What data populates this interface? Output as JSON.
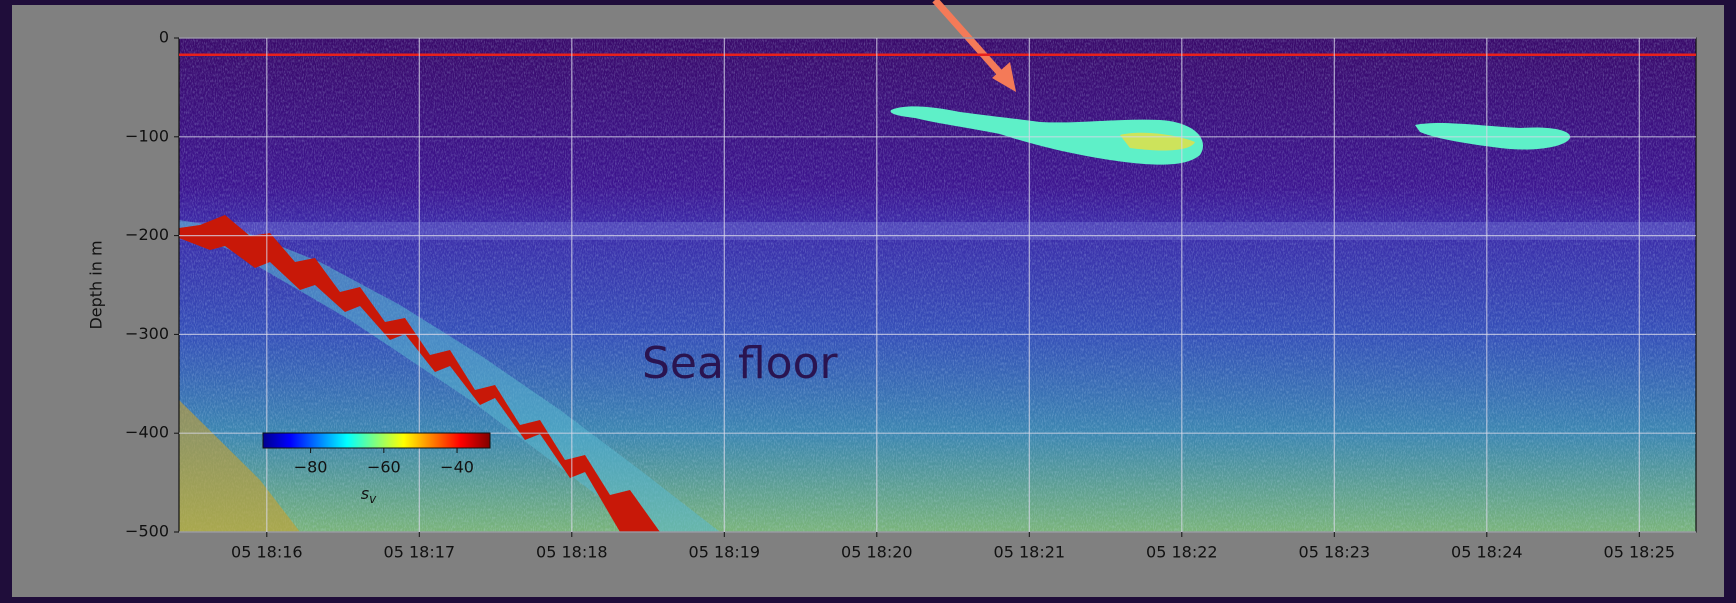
{
  "chart_data": {
    "type": "heatmap",
    "ylabel": "Depth in m",
    "ylim": [
      -500,
      0
    ],
    "yticks": [
      {
        "value": -500,
        "label": "−500"
      },
      {
        "value": -400,
        "label": "−400"
      },
      {
        "value": -300,
        "label": "−300"
      },
      {
        "value": -200,
        "label": "−200"
      },
      {
        "value": -100,
        "label": "−100"
      },
      0
    ],
    "xticks": [
      "05 18:16",
      "05 18:17",
      "05 18:18",
      "05 18:19",
      "05 18:20",
      "05 18:21",
      "05 18:22",
      "05 18:23",
      "05 18:24",
      "05 18:25"
    ],
    "grid": true,
    "reference_line": {
      "value": -17,
      "color": "#e8201c"
    },
    "annotations": [
      "Sea floor"
    ],
    "colorbar": {
      "label": "s",
      "label_sub": "v",
      "colormap": "jet",
      "clim": [
        -93,
        -31
      ],
      "ticks": [
        {
          "value": -80,
          "label": "−80"
        },
        {
          "value": -60,
          "label": "−60"
        },
        {
          "value": -40,
          "label": "−40"
        }
      ]
    }
  }
}
